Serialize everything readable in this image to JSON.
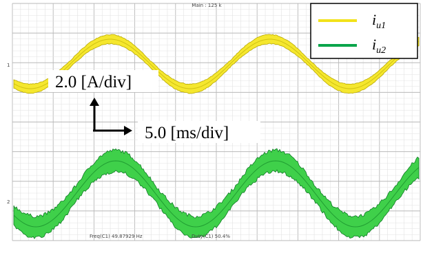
{
  "screen": {
    "header": "Main : 125 k",
    "channel_markers": [
      "1",
      "2"
    ],
    "scale": {
      "vertical": "2.0 [A/div]",
      "horizontal": "5.0 [ms/div]"
    },
    "legend": [
      {
        "symbol": "i",
        "subscript": "u1"
      },
      {
        "symbol": "i",
        "subscript": "u2"
      }
    ],
    "measurements": {
      "frequency": "Freq(C1)   49.87929 Hz",
      "duty": "Duty(C1)   50.4%"
    }
  }
}
